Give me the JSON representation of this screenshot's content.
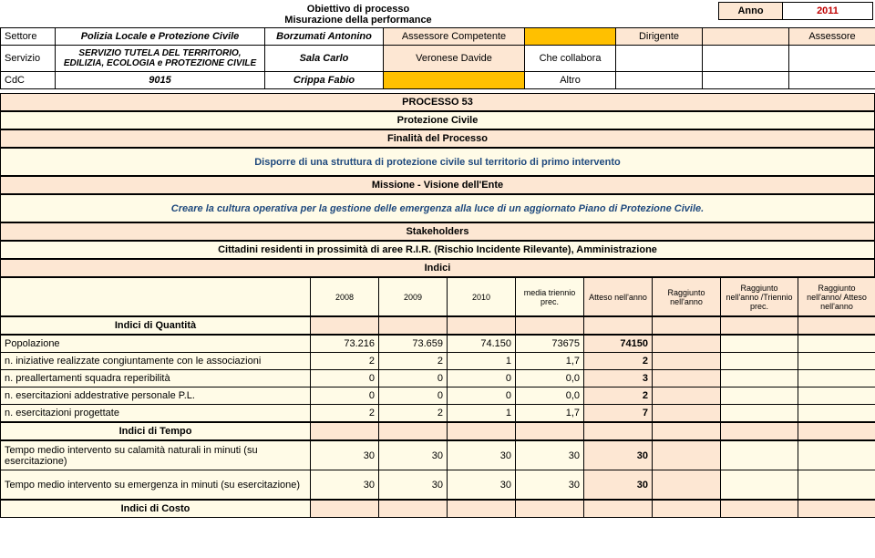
{
  "anno": {
    "label": "Anno",
    "value": "2011"
  },
  "title1": "Obiettivo di processo",
  "title2": "Misurazione della performance",
  "meta": {
    "settore_label": "Settore",
    "settore_val": "Polizia Locale e Protezione Civile",
    "borzumati": "Borzumati Antonino",
    "assessore_comp": "Assessore Competente",
    "dirigente": "Dirigente",
    "assessore": "Assessore",
    "servizio_label": "Servizio",
    "servizio_val": "SERVIZIO TUTELA DEL TERRITORIO, EDILIZIA, ECOLOGIA e PROTEZIONE CIVILE",
    "sala": "Sala Carlo",
    "veronese": "Veronese Davide",
    "che_collab": "Che collabora",
    "cdc_label": "CdC",
    "cdc_val": "9015",
    "crippa": "Crippa Fabio",
    "altro": "Altro"
  },
  "processo": "PROCESSO 53",
  "processo_name": "Protezione Civile",
  "finalita_label": "Finalità del Processo",
  "finalita_text": "Disporre di una struttura di protezione civile sul territorio di primo intervento",
  "missione_label": "Missione - Visione dell'Ente",
  "missione_text": "Creare la cultura operativa per la gestione delle emergenza alla luce di un aggiornato Piano di Protezione Civile.",
  "stakeholders_label": "Stakeholders",
  "stakeholders_text": "Cittadini residenti in prossimità di aree R.I.R. (Rischio Incidente Rilevante), Amministrazione",
  "indici_label": "Indici",
  "indici_head": {
    "c2008": "2008",
    "c2009": "2009",
    "c2010": "2010",
    "media": "media triennio prec.",
    "atteso": "Atteso nell'anno",
    "ragg_anno": "Raggiunto nell'anno",
    "ragg_tri": "Raggiunto nell'anno /Triennio prec.",
    "ragg_att": "Raggiunto nell'anno/ Atteso nell'anno"
  },
  "indici_quantita_label": "Indici di Quantità",
  "indici_tempo_label": "Indici di Tempo",
  "indici_costo_label": "Indici di Costo",
  "rows": [
    {
      "label": "Popolazione",
      "c2008": "73.216",
      "c2009": "73.659",
      "c2010": "74.150",
      "media": "73675",
      "atteso": "74150"
    },
    {
      "label": "n. iniziative realizzate congiuntamente con le associazioni",
      "c2008": "2",
      "c2009": "2",
      "c2010": "1",
      "media": "1,7",
      "atteso": "2"
    },
    {
      "label": "n. preallertamenti squadra reperibilità",
      "c2008": "0",
      "c2009": "0",
      "c2010": "0",
      "media": "0,0",
      "atteso": "3"
    },
    {
      "label": "n. esercitazioni addestrative personale P.L.",
      "c2008": "0",
      "c2009": "0",
      "c2010": "0",
      "media": "0,0",
      "atteso": "2"
    },
    {
      "label": "n. esercitazioni progettate",
      "c2008": "2",
      "c2009": "2",
      "c2010": "1",
      "media": "1,7",
      "atteso": "7"
    }
  ],
  "tempo_rows": [
    {
      "label": "Tempo medio intervento su calamità naturali in minuti (su esercitazione)",
      "c2008": "30",
      "c2009": "30",
      "c2010": "30",
      "media": "30",
      "atteso": "30"
    },
    {
      "label": "Tempo medio intervento su emergenza in minuti  (su esercitazione)",
      "c2008": "30",
      "c2009": "30",
      "c2010": "30",
      "media": "30",
      "atteso": "30"
    }
  ],
  "colors": {
    "peach": "#FDE7D3",
    "yellow": "#FFC000",
    "cream": "#FFFBE7"
  }
}
